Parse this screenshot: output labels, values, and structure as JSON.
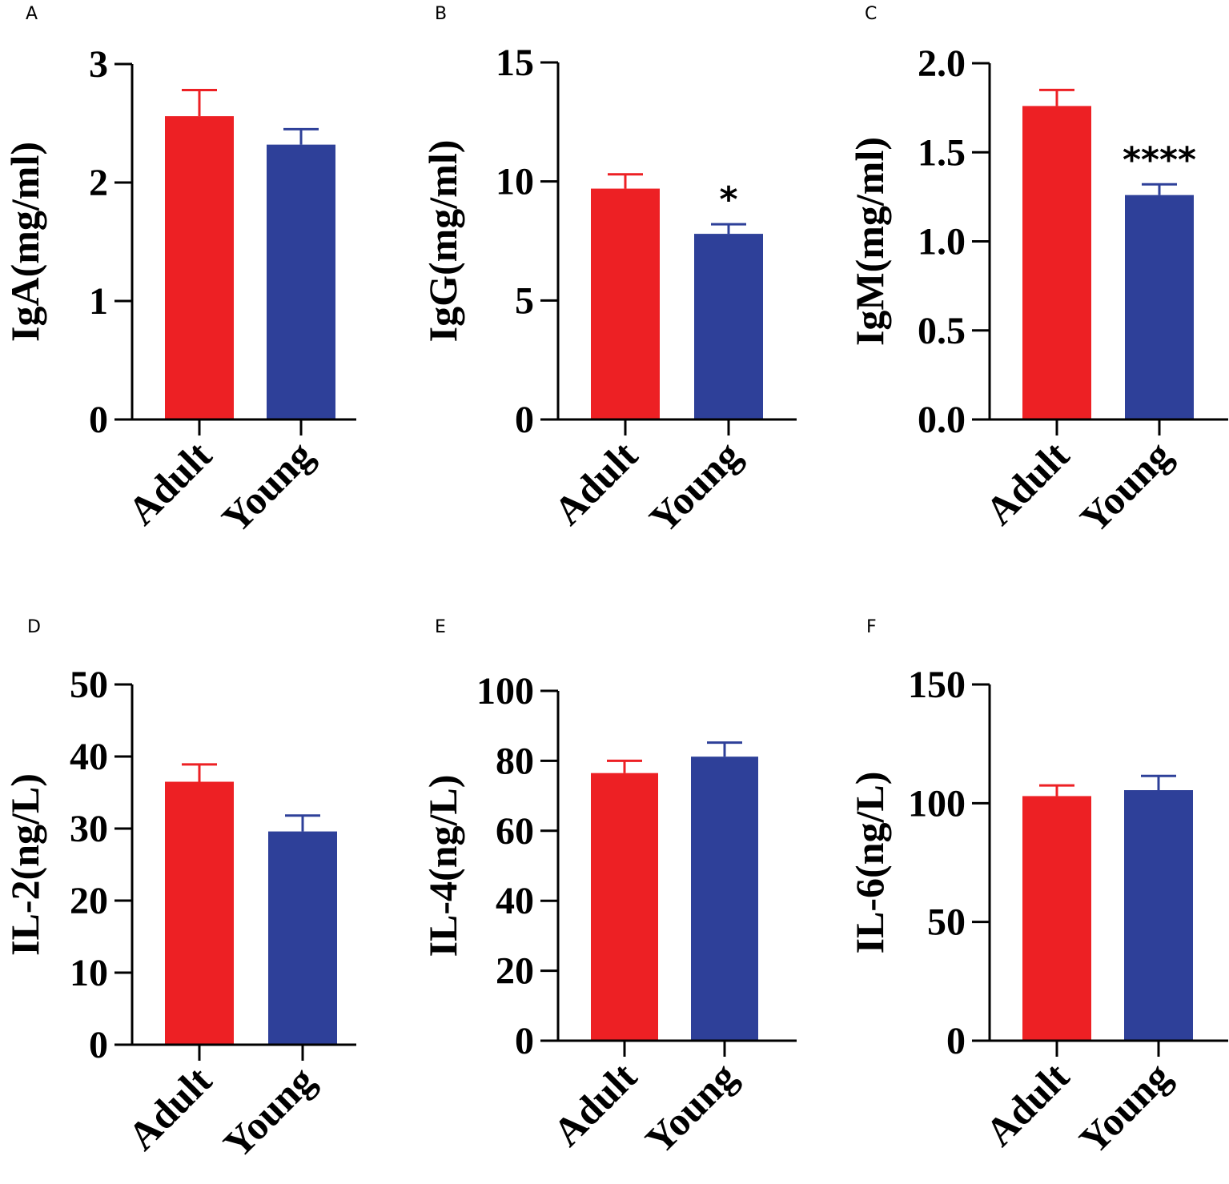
{
  "colors": {
    "adult": "#ed2024",
    "young": "#2e4099",
    "axis": "#000000"
  },
  "chart_data": [
    {
      "panel": "A",
      "type": "bar",
      "ylabel": "IgA(mg/ml)",
      "categories": [
        "Adult",
        "Young"
      ],
      "values": [
        2.56,
        2.32
      ],
      "errors": [
        0.22,
        0.13
      ],
      "ylim": [
        0,
        3
      ],
      "yticks": [
        "0",
        "1",
        "2",
        "3"
      ],
      "ytick_values": [
        0,
        1,
        2,
        3
      ],
      "significance": [
        "",
        ""
      ]
    },
    {
      "panel": "B",
      "type": "bar",
      "ylabel": "IgG(mg/ml)",
      "categories": [
        "Adult",
        "Young"
      ],
      "values": [
        9.7,
        7.8
      ],
      "errors": [
        0.6,
        0.4
      ],
      "ylim": [
        0,
        15
      ],
      "yticks": [
        "0",
        "5",
        "10",
        "15"
      ],
      "ytick_values": [
        0,
        5,
        10,
        15
      ],
      "significance": [
        "",
        "*"
      ]
    },
    {
      "panel": "C",
      "type": "bar",
      "ylabel": "IgM(mg/ml)",
      "categories": [
        "Adult",
        "Young"
      ],
      "values": [
        1.76,
        1.26
      ],
      "errors": [
        0.09,
        0.06
      ],
      "ylim": [
        0,
        2
      ],
      "yticks": [
        "0.0",
        "0.5",
        "1.0",
        "1.5",
        "2.0"
      ],
      "ytick_values": [
        0,
        0.5,
        1,
        1.5,
        2
      ],
      "significance": [
        "",
        "****"
      ]
    },
    {
      "panel": "D",
      "type": "bar",
      "ylabel": "IL-2(ng/L)",
      "categories": [
        "Adult",
        "Young"
      ],
      "values": [
        36.5,
        29.6
      ],
      "errors": [
        2.4,
        2.2
      ],
      "ylim": [
        0,
        50
      ],
      "yticks": [
        "0",
        "10",
        "20",
        "30",
        "40",
        "50"
      ],
      "ytick_values": [
        0,
        10,
        20,
        30,
        40,
        50
      ],
      "significance": [
        "",
        ""
      ]
    },
    {
      "panel": "E",
      "type": "bar",
      "ylabel": "IL-4(ng/L)",
      "categories": [
        "Adult",
        "Young"
      ],
      "values": [
        76.5,
        81.2
      ],
      "errors": [
        3.5,
        4.0
      ],
      "ylim": [
        0,
        100
      ],
      "yticks": [
        "0",
        "20",
        "40",
        "60",
        "80",
        "100"
      ],
      "ytick_values": [
        0,
        20,
        40,
        60,
        80,
        100
      ],
      "significance": [
        "",
        ""
      ]
    },
    {
      "panel": "F",
      "type": "bar",
      "ylabel": "IL-6(ng/L)",
      "categories": [
        "Adult",
        "Young"
      ],
      "values": [
        103,
        105.5
      ],
      "errors": [
        4.5,
        6.0
      ],
      "ylim": [
        0,
        150
      ],
      "yticks": [
        "0",
        "50",
        "100",
        "150"
      ],
      "ytick_values": [
        0,
        50,
        100,
        150
      ],
      "significance": [
        "",
        ""
      ]
    }
  ]
}
